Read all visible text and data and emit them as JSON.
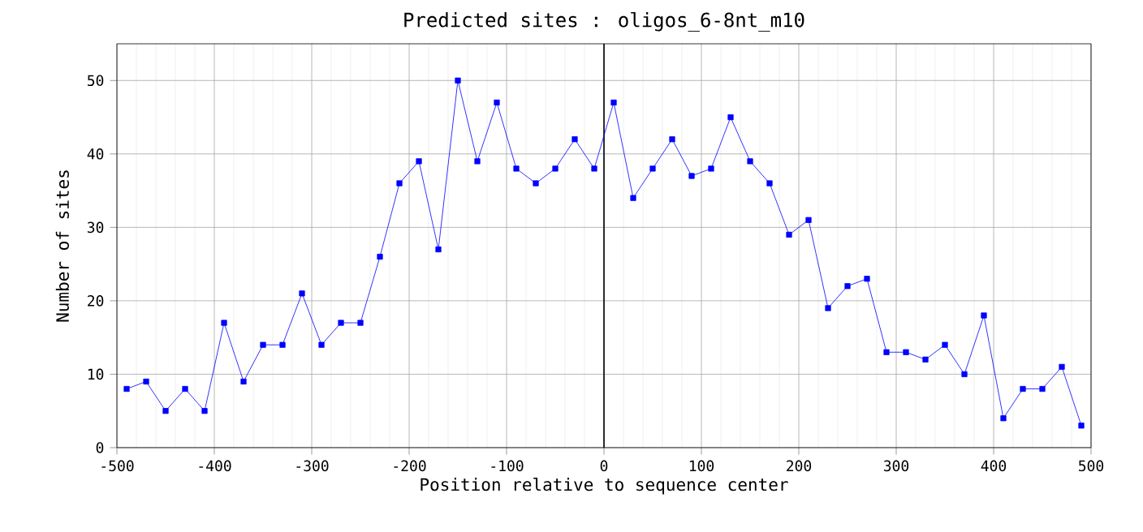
{
  "chart_data": {
    "type": "line",
    "title": "Predicted sites : oligos_6-8nt_m10",
    "xlabel": "Position relative to sequence center",
    "ylabel": "Number of sites",
    "x": [
      -490,
      -470,
      -450,
      -430,
      -410,
      -390,
      -370,
      -350,
      -330,
      -310,
      -290,
      -270,
      -250,
      -230,
      -210,
      -190,
      -170,
      -150,
      -130,
      -110,
      -90,
      -70,
      -50,
      -30,
      -10,
      10,
      30,
      50,
      70,
      90,
      110,
      130,
      150,
      170,
      190,
      210,
      230,
      250,
      270,
      290,
      310,
      330,
      350,
      370,
      390,
      410,
      430,
      450,
      470,
      490
    ],
    "series": [
      {
        "color": "#0000ff",
        "values": [
          8,
          9,
          5,
          8,
          5,
          17,
          9,
          14,
          14,
          21,
          14,
          17,
          17,
          26,
          36,
          39,
          27,
          50,
          39,
          47,
          38,
          36,
          38,
          42,
          38,
          47,
          34,
          38,
          42,
          37,
          38,
          45,
          39,
          36,
          29,
          31,
          19,
          22,
          23,
          13,
          13,
          12,
          14,
          10,
          18,
          4,
          8,
          8,
          11,
          3
        ]
      }
    ],
    "xlim": [
      -500,
      500
    ],
    "xticks": [
      -500,
      {
        "value": -480,
        "label": null
      },
      {
        "value": -460,
        "label": null
      },
      {
        "value": -440,
        "label": null
      },
      {
        "value": -420,
        "label": null
      },
      -400,
      {
        "value": -380,
        "label": null
      },
      {
        "value": -360,
        "label": null
      },
      {
        "value": -340,
        "label": null
      },
      {
        "value": -320,
        "label": null
      },
      -300,
      {
        "value": -280,
        "label": null
      },
      {
        "value": -260,
        "label": null
      },
      {
        "value": -240,
        "label": null
      },
      {
        "value": -220,
        "label": null
      },
      -200,
      {
        "value": -180,
        "label": null
      },
      {
        "value": -160,
        "label": null
      },
      {
        "value": -140,
        "label": null
      },
      {
        "value": -120,
        "label": null
      },
      -100,
      {
        "value": -80,
        "label": null
      },
      {
        "value": -60,
        "label": null
      },
      {
        "value": -40,
        "label": null
      },
      {
        "value": -20,
        "label": null
      },
      0,
      {
        "value": 20,
        "label": null
      },
      {
        "value": 40,
        "label": null
      },
      {
        "value": 60,
        "label": null
      },
      {
        "value": 80,
        "label": null
      },
      100,
      {
        "value": 120,
        "label": null
      },
      {
        "value": 140,
        "label": null
      },
      {
        "value": 160,
        "label": null
      },
      {
        "value": 180,
        "label": null
      },
      200,
      {
        "value": 220,
        "label": null
      },
      {
        "value": 240,
        "label": null
      },
      {
        "value": 260,
        "label": null
      },
      {
        "value": 280,
        "label": null
      },
      300,
      {
        "value": 320,
        "label": null
      },
      {
        "value": 340,
        "label": null
      },
      {
        "value": 360,
        "label": null
      },
      {
        "value": 380,
        "label": null
      },
      400,
      {
        "value": 420,
        "label": null
      },
      {
        "value": 440,
        "label": null
      },
      {
        "value": 460,
        "label": null
      },
      {
        "value": 480,
        "label": null
      },
      500
    ],
    "ylim": [
      0,
      55
    ],
    "yticks": [
      0,
      10,
      20,
      30,
      40,
      50
    ],
    "ref_lines": [
      {
        "axis": "x",
        "value": 0,
        "color": "#000000"
      }
    ],
    "grid": true,
    "marker": "square",
    "line_style": "solid"
  }
}
